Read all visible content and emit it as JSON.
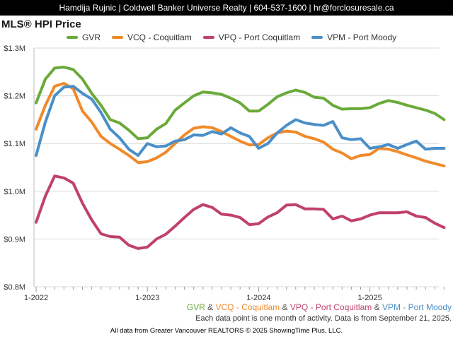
{
  "header": {
    "text": "Hamdija Rujnic | Coldwell Banker Universe Realty | 604-537-1600 | hr@forclosuresale.ca"
  },
  "chart_data": {
    "type": "line",
    "title": "MLS® HPI Price",
    "xlabel": "",
    "ylabel": "",
    "ylim": [
      800000,
      1300000
    ],
    "y_ticks": [
      {
        "value": 800000,
        "label": "$0.8M"
      },
      {
        "value": 900000,
        "label": "$0.9M"
      },
      {
        "value": 1000000,
        "label": "$1.0M"
      },
      {
        "value": 1100000,
        "label": "$1.1M"
      },
      {
        "value": 1200000,
        "label": "$1.2M"
      },
      {
        "value": 1300000,
        "label": "$1.3M"
      }
    ],
    "x_ticks": [
      {
        "index": 0,
        "label": "1-2022"
      },
      {
        "index": 12,
        "label": "1-2023"
      },
      {
        "index": 24,
        "label": "1-2024"
      },
      {
        "index": 36,
        "label": "1-2025"
      }
    ],
    "x_count": 45,
    "grid": true,
    "legend_position": "top",
    "series": [
      {
        "name": "GVR",
        "color": "#6aaa3a",
        "values": [
          1185000,
          1235000,
          1258000,
          1260000,
          1255000,
          1235000,
          1205000,
          1180000,
          1150000,
          1143000,
          1128000,
          1110000,
          1112000,
          1130000,
          1142000,
          1170000,
          1185000,
          1200000,
          1208000,
          1206000,
          1203000,
          1195000,
          1185000,
          1168000,
          1168000,
          1182000,
          1198000,
          1206000,
          1212000,
          1207000,
          1197000,
          1195000,
          1180000,
          1172000,
          1173000,
          1173000,
          1175000,
          1184000,
          1190000,
          1186000,
          1180000,
          1175000,
          1170000,
          1163000,
          1150000
        ]
      },
      {
        "name": "VCQ - Coquitlam",
        "color": "#f08a2a",
        "values": [
          1130000,
          1180000,
          1220000,
          1226000,
          1215000,
          1168000,
          1145000,
          1115000,
          1100000,
          1088000,
          1075000,
          1060000,
          1062000,
          1070000,
          1082000,
          1100000,
          1118000,
          1132000,
          1135000,
          1133000,
          1125000,
          1115000,
          1105000,
          1097000,
          1098000,
          1112000,
          1122000,
          1126000,
          1124000,
          1115000,
          1110000,
          1103000,
          1088000,
          1080000,
          1068000,
          1075000,
          1077000,
          1090000,
          1088000,
          1083000,
          1076000,
          1070000,
          1063000,
          1058000,
          1053000
        ]
      },
      {
        "name": "VPQ - Port Coquitlam",
        "color": "#c0416d",
        "values": [
          935000,
          990000,
          1032000,
          1028000,
          1017000,
          975000,
          940000,
          911000,
          905000,
          904000,
          887000,
          880000,
          883000,
          900000,
          910000,
          927000,
          945000,
          962000,
          972000,
          966000,
          952000,
          950000,
          945000,
          930000,
          932000,
          946000,
          955000,
          971000,
          972000,
          963000,
          963000,
          962000,
          942000,
          948000,
          938000,
          942000,
          950000,
          955000,
          955000,
          955000,
          957000,
          948000,
          945000,
          933000,
          924000
        ]
      },
      {
        "name": "VPM - Port Moody",
        "color": "#4a8fc8",
        "values": [
          1075000,
          1145000,
          1200000,
          1218000,
          1220000,
          1205000,
          1193000,
          1165000,
          1130000,
          1112000,
          1088000,
          1075000,
          1100000,
          1093000,
          1095000,
          1105000,
          1108000,
          1118000,
          1117000,
          1125000,
          1120000,
          1133000,
          1122000,
          1115000,
          1090000,
          1100000,
          1122000,
          1138000,
          1150000,
          1143000,
          1140000,
          1138000,
          1146000,
          1112000,
          1108000,
          1110000,
          1090000,
          1093000,
          1098000,
          1090000,
          1098000,
          1105000,
          1088000,
          1090000,
          1090000
        ]
      }
    ]
  },
  "bottom_legend": {
    "gvr": "GVR",
    "vcq": "VCQ - Coquitlam",
    "vpq": "VPQ - Port Coquitlam",
    "vpm": "VPM - Port Moody",
    "amp": "&"
  },
  "note": "Each data point is one month of activity. Data is from September 21, 2025.",
  "footer": "All data from Greater Vancouver REALTORS © 2025 ShowingTime Plus, LLC."
}
